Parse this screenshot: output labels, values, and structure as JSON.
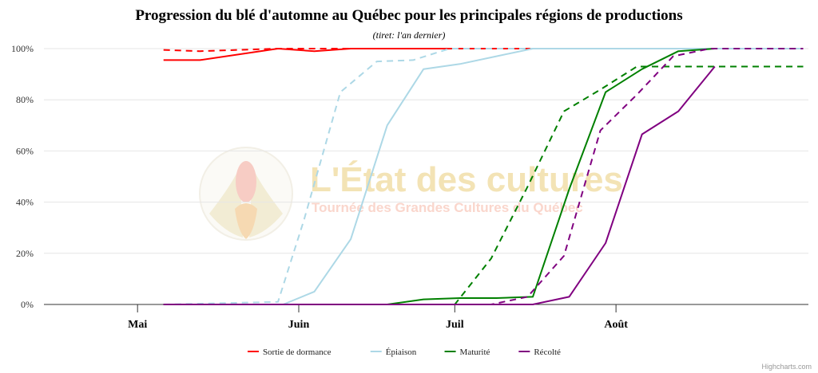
{
  "colors": {
    "background": "#ffffff",
    "grid": "#e6e6e6",
    "axis": "#333333",
    "series": [
      "#ff0000",
      "#add8e6",
      "#008000",
      "#800080"
    ]
  },
  "watermark": {
    "title": "L'État des cultures",
    "subtitle": "Tournée des Grandes Cultures du Québec",
    "logo": "corn-logo-icon"
  },
  "credits": "Highcharts.com",
  "chart_data": {
    "type": "line",
    "title": "Progression du blé d'automne au Québec pour les principales régions de productions",
    "subtitle": "(tiret: l'an dernier)",
    "xlabel": "",
    "ylabel": "",
    "x_ticks": [
      {
        "label": "Mai",
        "date": "05-01"
      },
      {
        "label": "Juin",
        "date": "06-01"
      },
      {
        "label": "Juil",
        "date": "07-01"
      },
      {
        "label": "Août",
        "date": "08-01"
      }
    ],
    "xlim": [
      "04-13",
      "09-07"
    ],
    "ylim": [
      0,
      100
    ],
    "y_ticks": [
      "0%",
      "20%",
      "40%",
      "60%",
      "80%",
      "100%"
    ],
    "grid": true,
    "legend_position": "bottom-center",
    "series": [
      {
        "name": "Sortie de dormance",
        "color": "#ff0000",
        "dash": false,
        "legend": true,
        "points": [
          [
            "05-06",
            95.5
          ],
          [
            "05-13",
            95.5
          ],
          [
            "05-28",
            100
          ],
          [
            "06-04",
            99
          ],
          [
            "06-11",
            100
          ],
          [
            "06-18",
            100
          ],
          [
            "07-09",
            100
          ],
          [
            "07-16",
            100
          ]
        ]
      },
      {
        "name": "Sortie de dormance",
        "color": "#ff0000",
        "dash": true,
        "legend": false,
        "points": [
          [
            "05-06",
            99.5
          ],
          [
            "05-13",
            99
          ],
          [
            "05-28",
            100
          ],
          [
            "06-11",
            100
          ],
          [
            "07-16",
            100
          ]
        ]
      },
      {
        "name": "Épiaison",
        "color": "#add8e6",
        "dash": false,
        "legend": true,
        "points": [
          [
            "05-06",
            0
          ],
          [
            "05-29",
            0
          ],
          [
            "06-04",
            5
          ],
          [
            "06-11",
            25.5
          ],
          [
            "06-18",
            70
          ],
          [
            "06-25",
            92
          ],
          [
            "07-02",
            94
          ],
          [
            "07-09",
            97
          ],
          [
            "07-16",
            100
          ],
          [
            "09-06",
            100
          ]
        ]
      },
      {
        "name": "Épiaison",
        "color": "#add8e6",
        "dash": true,
        "legend": false,
        "points": [
          [
            "05-06",
            0
          ],
          [
            "05-28",
            1
          ],
          [
            "06-02",
            33
          ],
          [
            "06-09",
            83
          ],
          [
            "06-16",
            95
          ],
          [
            "06-23",
            95.5
          ],
          [
            "06-30",
            100
          ],
          [
            "07-16",
            100
          ]
        ]
      },
      {
        "name": "Maturité",
        "color": "#008000",
        "dash": false,
        "legend": true,
        "points": [
          [
            "05-06",
            0
          ],
          [
            "06-18",
            0
          ],
          [
            "06-25",
            2
          ],
          [
            "07-02",
            2.5
          ],
          [
            "07-09",
            2.5
          ],
          [
            "07-16",
            3
          ],
          [
            "07-23",
            45
          ],
          [
            "07-30",
            83
          ],
          [
            "08-06",
            92
          ],
          [
            "08-13",
            99
          ],
          [
            "08-20",
            100
          ]
        ]
      },
      {
        "name": "Maturité",
        "color": "#008000",
        "dash": true,
        "legend": false,
        "points": [
          [
            "05-06",
            0
          ],
          [
            "07-01",
            0
          ],
          [
            "07-08",
            18
          ],
          [
            "07-15",
            46
          ],
          [
            "07-22",
            75.5
          ],
          [
            "07-29",
            84
          ],
          [
            "08-05",
            93
          ],
          [
            "08-12",
            93
          ],
          [
            "09-06",
            93
          ]
        ]
      },
      {
        "name": "Récolté",
        "color": "#800080",
        "dash": false,
        "legend": true,
        "points": [
          [
            "05-06",
            0
          ],
          [
            "07-16",
            0
          ],
          [
            "07-23",
            3
          ],
          [
            "07-30",
            24
          ],
          [
            "08-06",
            66.5
          ],
          [
            "08-13",
            75.5
          ],
          [
            "08-20",
            93
          ]
        ]
      },
      {
        "name": "Récolté",
        "color": "#800080",
        "dash": true,
        "legend": false,
        "points": [
          [
            "05-06",
            0
          ],
          [
            "07-08",
            0
          ],
          [
            "07-15",
            3
          ],
          [
            "07-22",
            19
          ],
          [
            "07-29",
            68
          ],
          [
            "08-05",
            82
          ],
          [
            "08-12",
            97
          ],
          [
            "08-19",
            100
          ],
          [
            "09-06",
            100
          ]
        ]
      }
    ]
  }
}
